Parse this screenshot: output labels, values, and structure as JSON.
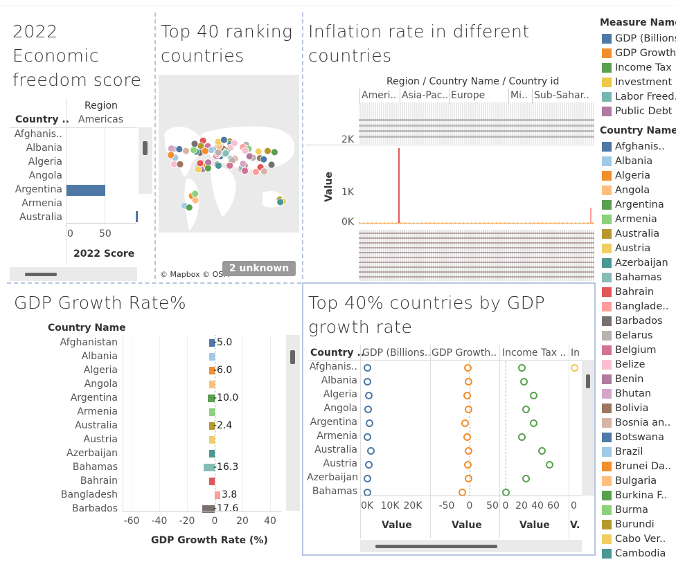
{
  "panel1": {
    "title_lines": [
      "2022",
      "Economic",
      "freedom score"
    ],
    "col_header": "Country ..",
    "region_header": "Region",
    "region_value": "Americas",
    "countries": [
      "Afghanis..",
      "Albania",
      "Algeria",
      "Angola",
      "Argentina",
      "Armenia",
      "Australia"
    ],
    "bar_values": [
      null,
      null,
      null,
      null,
      50.1,
      null,
      null
    ],
    "axis_ticks": [
      "0",
      "50"
    ],
    "axis_label": "2022 Score"
  },
  "panel2": {
    "title_lines": [
      "Top 40 ranking",
      "countries"
    ],
    "attribution": "© Mapbox © OSM",
    "unknown_badge": "2 unknown"
  },
  "panel3": {
    "title_lines": [
      "Inflation rate in different",
      "countries"
    ],
    "header": "Region  /  Country Name  /  Country id",
    "regions": [
      "Ameri..",
      "Asia-Pac..",
      "Europe",
      "Mi..",
      "Sub-Sahar.."
    ],
    "y_label": "Value",
    "y_ticks": [
      "2K",
      "1K",
      "0K"
    ]
  },
  "panel4": {
    "title": "GDP Growth Rate%",
    "col_header": "Country Name",
    "countries": [
      "Afghanistan",
      "Albania",
      "Algeria",
      "Angola",
      "Argentina",
      "Armenia",
      "Australia",
      "Austria",
      "Azerbaijan",
      "Bahamas",
      "Bahrain",
      "Bangladesh",
      "Barbados"
    ],
    "values": [
      -5.0,
      -2.5,
      -6.0,
      -3.0,
      -10.0,
      -6.0,
      -2.4,
      -5.0,
      -3.0,
      -16.3,
      -4.0,
      3.8,
      -17.6
    ],
    "labels": [
      "-5.0",
      "",
      "-6.0",
      "",
      "-10.0",
      "",
      "-2.4",
      "",
      "",
      "-16.3",
      "",
      "3.8",
      "-17.6"
    ],
    "colors": [
      "#4e79a7",
      "#a0cbe8",
      "#f28e2b",
      "#ffbe7d",
      "#59a14f",
      "#8cd17d",
      "#b6992d",
      "#f1ce63",
      "#499894",
      "#86bcb6",
      "#e15759",
      "#ff9d9a",
      "#79706e"
    ],
    "axis_ticks": [
      "-60",
      "-40",
      "-20",
      "0",
      "20",
      "40"
    ],
    "axis_label": "GDP Growth Rate (%)"
  },
  "panel5": {
    "title_lines": [
      "Top 40% countries by GDP",
      "growth rate"
    ],
    "col_header": "Country ..",
    "measure_headers": [
      "GDP (Billions..",
      "GDP Growth..",
      "Income Tax ..",
      "In"
    ],
    "countries": [
      "Afghanis..",
      "Albania",
      "Algeria",
      "Angola",
      "Argentina",
      "Armenia",
      "Australia",
      "Austria",
      "Azerbaijan",
      "Bahamas"
    ],
    "gdp_billions": [
      70,
      40,
      550,
      200,
      1000,
      40,
      1400,
      480,
      150,
      12
    ],
    "gdp_growth": [
      -5,
      -2.5,
      -6,
      -3,
      -10,
      -6,
      -2.4,
      -5,
      -3,
      -16.3
    ],
    "income_tax": [
      20,
      23,
      35,
      25,
      35,
      20,
      45,
      55,
      25,
      0
    ],
    "gdp_ticks": [
      "0K",
      "10K",
      "20K"
    ],
    "growth_ticks": [
      "-50",
      "0",
      "50"
    ],
    "tax_ticks": [
      "0",
      "20",
      "40",
      "60"
    ],
    "inv_ticks": [
      "0"
    ],
    "footer_labels": [
      "Value",
      "Value",
      "Value",
      "V."
    ]
  },
  "legend": {
    "measure_title": "Measure Names",
    "measures": [
      {
        "label": "GDP (Billions",
        "color": "#4e79a7"
      },
      {
        "label": "GDP Growth",
        "color": "#f28e2b"
      },
      {
        "label": "Income Tax ..",
        "color": "#59a14f"
      },
      {
        "label": "Investment ..",
        "color": "#edc948"
      },
      {
        "label": "Labor Freed..",
        "color": "#76b7b2"
      },
      {
        "label": "Public Debt (",
        "color": "#b07aa1"
      }
    ],
    "country_title": "Country Name",
    "countries": [
      {
        "label": "Afghanis..",
        "color": "#4e79a7"
      },
      {
        "label": "Albania",
        "color": "#a0cbe8"
      },
      {
        "label": "Algeria",
        "color": "#f28e2b"
      },
      {
        "label": "Angola",
        "color": "#ffbe7d"
      },
      {
        "label": "Argentina",
        "color": "#59a14f"
      },
      {
        "label": "Armenia",
        "color": "#8cd17d"
      },
      {
        "label": "Australia",
        "color": "#b6992d"
      },
      {
        "label": "Austria",
        "color": "#f1ce63"
      },
      {
        "label": "Azerbaijan",
        "color": "#499894"
      },
      {
        "label": "Bahamas",
        "color": "#86bcb6"
      },
      {
        "label": "Bahrain",
        "color": "#e15759"
      },
      {
        "label": "Banglade..",
        "color": "#ff9d9a"
      },
      {
        "label": "Barbados",
        "color": "#79706e"
      },
      {
        "label": "Belarus",
        "color": "#bab0ac"
      },
      {
        "label": "Belgium",
        "color": "#d37295"
      },
      {
        "label": "Belize",
        "color": "#fabfd2"
      },
      {
        "label": "Benin",
        "color": "#b07aa1"
      },
      {
        "label": "Bhutan",
        "color": "#d4a6c8"
      },
      {
        "label": "Bolivia",
        "color": "#9d7660"
      },
      {
        "label": "Bosnia an..",
        "color": "#d7b5a6"
      },
      {
        "label": "Botswana",
        "color": "#4e79a7"
      },
      {
        "label": "Brazil",
        "color": "#a0cbe8"
      },
      {
        "label": "Brunei Da..",
        "color": "#f28e2b"
      },
      {
        "label": "Bulgaria",
        "color": "#ffbe7d"
      },
      {
        "label": "Burkina F..",
        "color": "#59a14f"
      },
      {
        "label": "Burma",
        "color": "#8cd17d"
      },
      {
        "label": "Burundi",
        "color": "#b6992d"
      },
      {
        "label": "Cabo Ver..",
        "color": "#f1ce63"
      },
      {
        "label": "Cambodia",
        "color": "#499894"
      }
    ]
  }
}
